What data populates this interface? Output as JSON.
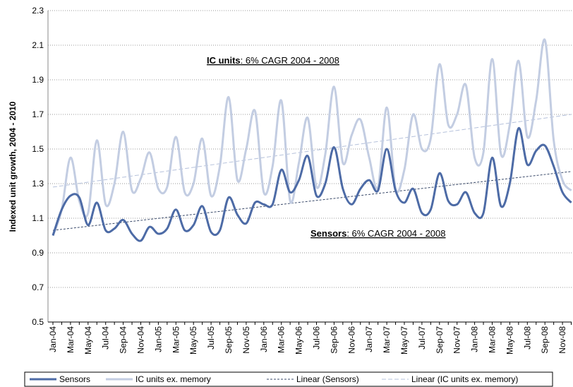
{
  "chart_data": {
    "type": "line",
    "y_label": "Indexed unit growth, 2004 - 2010",
    "categories": [
      "Jan-04",
      null,
      "Mar-04",
      null,
      "May-04",
      null,
      "Jul-04",
      null,
      "Sep-04",
      null,
      "Nov-04",
      null,
      "Jan-05",
      null,
      "Mar-05",
      null,
      "May-05",
      null,
      "Jul-05",
      null,
      "Sep-05",
      null,
      "Nov-05",
      null,
      "Jan-06",
      null,
      "Mar-06",
      null,
      "May-06",
      null,
      "Jul-06",
      null,
      "Sep-06",
      null,
      "Nov-06",
      null,
      "Jan-07",
      null,
      "Mar-07",
      null,
      "May-07",
      null,
      "Jul-07",
      null,
      "Sep-07",
      null,
      "Nov-07",
      null,
      "Jan-08",
      null,
      "Mar-08",
      null,
      "May-08",
      null,
      "Jul-08",
      null,
      "Sep-08",
      null,
      "Nov-08",
      null
    ],
    "series": [
      {
        "name": "Sensors",
        "color": "#4d6ba6",
        "values": [
          1.0,
          1.15,
          1.23,
          1.22,
          1.06,
          1.19,
          1.03,
          1.04,
          1.09,
          1.01,
          0.97,
          1.05,
          1.01,
          1.04,
          1.15,
          1.03,
          1.06,
          1.17,
          1.02,
          1.03,
          1.22,
          1.12,
          1.07,
          1.19,
          1.18,
          1.18,
          1.38,
          1.25,
          1.32,
          1.46,
          1.23,
          1.3,
          1.51,
          1.27,
          1.18,
          1.27,
          1.32,
          1.26,
          1.5,
          1.26,
          1.19,
          1.27,
          1.13,
          1.15,
          1.36,
          1.2,
          1.18,
          1.25,
          1.13,
          1.13,
          1.45,
          1.17,
          1.3,
          1.62,
          1.41,
          1.49,
          1.52,
          1.4,
          1.25,
          1.19
        ]
      },
      {
        "name": "IC units ex. memory",
        "color": "#c3cde2",
        "values": [
          1.0,
          1.15,
          1.45,
          1.2,
          1.13,
          1.55,
          1.18,
          1.3,
          1.6,
          1.26,
          1.33,
          1.48,
          1.27,
          1.28,
          1.57,
          1.25,
          1.3,
          1.56,
          1.23,
          1.4,
          1.8,
          1.32,
          1.5,
          1.72,
          1.25,
          1.4,
          1.78,
          1.2,
          1.42,
          1.68,
          1.28,
          1.47,
          1.86,
          1.42,
          1.58,
          1.67,
          1.45,
          1.28,
          1.74,
          1.27,
          1.38,
          1.7,
          1.5,
          1.56,
          1.99,
          1.64,
          1.7,
          1.87,
          1.45,
          1.48,
          2.02,
          1.47,
          1.64,
          2.01,
          1.57,
          1.78,
          2.13,
          1.55,
          1.32,
          1.26
        ]
      }
    ],
    "trendlines": [
      {
        "name": "Linear (Sensors)",
        "color": "#3a4a6a",
        "start": 1.03,
        "end": 1.37
      },
      {
        "name": "Linear (IC units ex. memory)",
        "color": "#b5c1db",
        "start": 1.28,
        "end": 1.7
      }
    ],
    "annotations": [
      {
        "bold": "IC units",
        "text": ": 6% CAGR 2004 - 2008"
      },
      {
        "bold": "Sensors",
        "text": ": 6% CAGR 2004 - 2008"
      }
    ],
    "ylim": [
      0.5,
      2.3
    ],
    "yticks": [
      0.5,
      0.7,
      0.9,
      1.1,
      1.3,
      1.5,
      1.7,
      1.9,
      2.1,
      2.3
    ],
    "grid": true,
    "legend": "bottom"
  }
}
